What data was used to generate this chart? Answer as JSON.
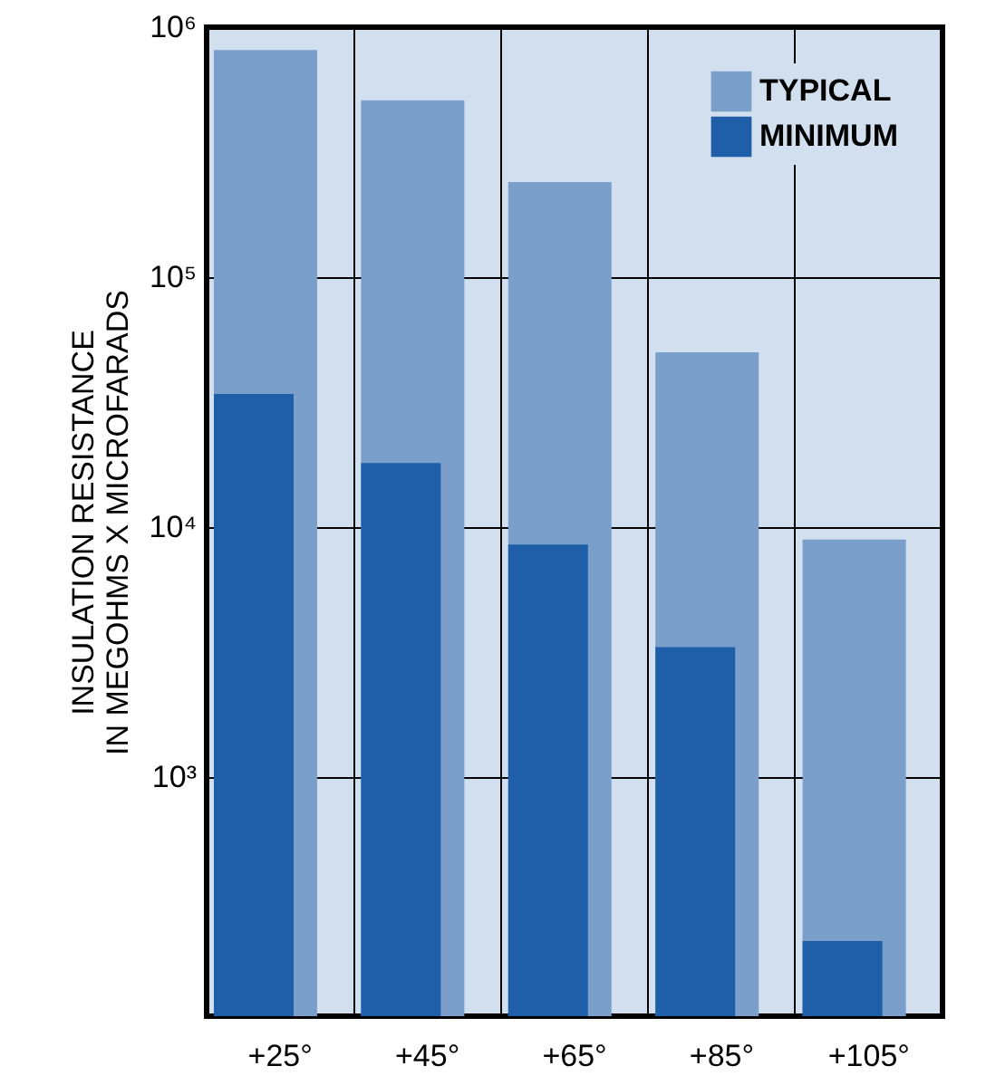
{
  "chart_data": {
    "type": "bar",
    "ylabel": "INSULATION RESISTANCE\nIN MEGOHMS X MICROFARADS",
    "categories": [
      "+25°",
      "+45°",
      "+65°",
      "+85°",
      "+105°"
    ],
    "series": [
      {
        "name": "TYPICAL",
        "color": "#7a9fcb",
        "values": [
          810000,
          510000,
          240000,
          50000,
          8900
        ]
      },
      {
        "name": "MINIMUM",
        "color": "#1f5faa",
        "values": [
          34000,
          18000,
          8500,
          3300,
          220
        ]
      }
    ],
    "log": true,
    "ylim": [
      110,
      1000000
    ],
    "yticks": [
      {
        "value": 1000,
        "label": "10³"
      },
      {
        "value": 10000,
        "label": "10⁴"
      },
      {
        "value": 100000,
        "label": "10⁵"
      },
      {
        "value": 1000000,
        "label": "10⁶"
      }
    ],
    "grid": true,
    "legend": "top right"
  }
}
